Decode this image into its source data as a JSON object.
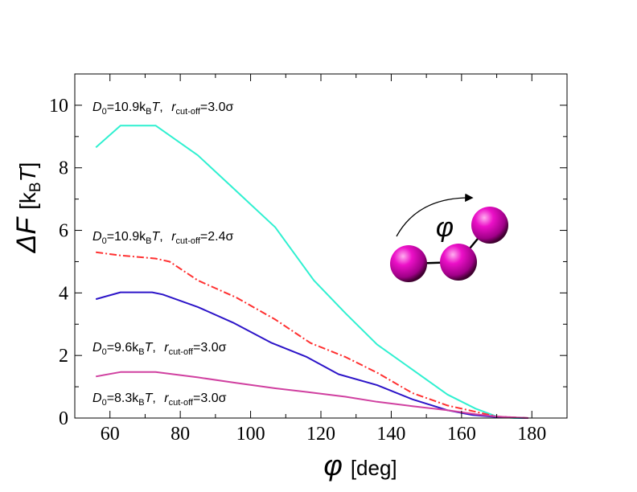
{
  "chart_data": {
    "type": "line",
    "title": "",
    "xlabel": {
      "symbol": "φ",
      "unit": "[deg]"
    },
    "ylabel": {
      "symbol": "ΔF",
      "unit_open": "[k",
      "unit_sub": "B",
      "unit_var": "T",
      "unit_close": "]"
    },
    "xlim": [
      50,
      190
    ],
    "ylim": [
      0,
      11
    ],
    "xticks": [
      60,
      80,
      100,
      120,
      140,
      160,
      180
    ],
    "yticks": [
      0,
      2,
      4,
      6,
      8,
      10
    ],
    "grid": false,
    "series": [
      {
        "name": "D0=10.9kBT, rcut-off=3.0σ",
        "color": "#2ff0d0",
        "dash": "solid",
        "x": [
          56,
          63,
          73,
          85,
          96,
          107,
          118,
          127,
          136,
          146,
          156,
          164,
          170,
          175,
          179
        ],
        "y": [
          8.65,
          9.35,
          9.35,
          8.4,
          7.25,
          6.1,
          4.4,
          3.35,
          2.35,
          1.55,
          0.75,
          0.3,
          0.05,
          0.0,
          0.0
        ]
      },
      {
        "name": "D0=10.9kBT, rcut-off=2.4σ",
        "color": "#ff3030",
        "dash": "dashdot",
        "x": [
          56,
          63,
          73,
          77,
          85,
          96,
          107,
          117,
          127,
          136,
          146,
          156,
          164,
          170,
          179
        ],
        "y": [
          5.3,
          5.2,
          5.1,
          5.0,
          4.4,
          3.85,
          3.15,
          2.4,
          1.95,
          1.45,
          0.8,
          0.4,
          0.2,
          0.05,
          0.0
        ]
      },
      {
        "name": "D0=9.6kBT, rcut-off=3.0σ",
        "color": "#2c14c8",
        "dash": "solid",
        "x": [
          56,
          63,
          72,
          75,
          85,
          95,
          106,
          116,
          125,
          136,
          146,
          156,
          163,
          170,
          179
        ],
        "y": [
          3.8,
          4.02,
          4.02,
          3.95,
          3.55,
          3.05,
          2.4,
          1.95,
          1.4,
          1.05,
          0.6,
          0.25,
          0.1,
          0.03,
          0.0
        ]
      },
      {
        "name": "D0=8.3kBT, rcut-off=3.0σ",
        "color": "#d040a0",
        "dash": "solid",
        "x": [
          56,
          63,
          73,
          85,
          96,
          107,
          117,
          127,
          136,
          146,
          156,
          164,
          170,
          179
        ],
        "y": [
          1.33,
          1.47,
          1.47,
          1.3,
          1.12,
          0.95,
          0.82,
          0.68,
          0.52,
          0.38,
          0.25,
          0.12,
          0.05,
          0.0
        ]
      }
    ],
    "annotations": [
      {
        "pre": "D",
        "sub1": "0",
        "mid": "=10.9k",
        "sub2": "B",
        "var": "T",
        "sep": ",  ",
        "r": "r",
        "sub3": "cut-off",
        "post": "=3.0σ"
      },
      {
        "pre": "D",
        "sub1": "0",
        "mid": "=10.9k",
        "sub2": "B",
        "var": "T",
        "sep": ",  ",
        "r": "r",
        "sub3": "cut-off",
        "post": "=2.4σ"
      },
      {
        "pre": "D",
        "sub1": "0",
        "mid": "=9.6k",
        "sub2": "B",
        "var": "T",
        "sep": ",  ",
        "r": "r",
        "sub3": "cut-off",
        "post": "=3.0σ"
      },
      {
        "pre": "D",
        "sub1": "0",
        "mid": "=8.3k",
        "sub2": "B",
        "var": "T",
        "sep": ",  ",
        "r": "r",
        "sub3": "cut-off",
        "post": "=3.0σ"
      }
    ],
    "inset": {
      "label": "φ",
      "bead_color": "#e000c0"
    }
  }
}
